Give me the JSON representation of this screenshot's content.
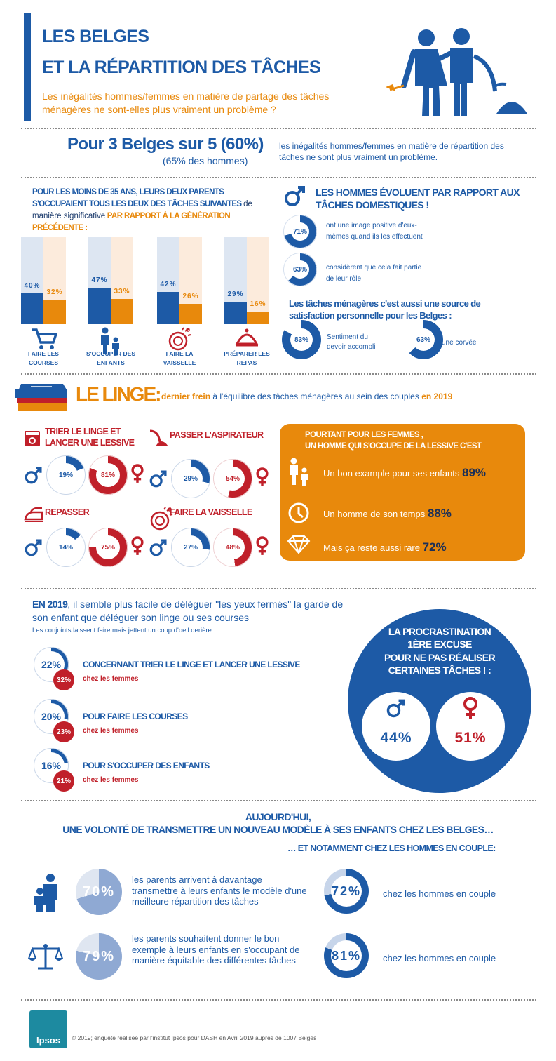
{
  "header": {
    "title_line1": "LES BELGES",
    "title_line2": "ET LA RÉPARTITION DES TÂCHES",
    "subtitle": "Les inégalités hommes/femmes en matière de partage des tâches ménagères ne sont-elles plus vraiment un problème ?"
  },
  "headline": {
    "big": "Pour 3 Belges sur 5 (60%)",
    "sub": "(65% des hommes)",
    "text": "les inégalités hommes/femmes en matière de répartition des tâches ne sont plus vraiment un problème."
  },
  "parents": {
    "title_a": "POUR LES MOINS DE 35 ANS, LEURS DEUX PARENTS S'OCCUPAIENT TOUS LES DEUX DES TÂCHES SUIVANTES",
    "title_b": "de manière significative",
    "title_c": "PAR RAPPORT À LA GÉNÉRATION PRÉCÉDENTE :",
    "bars": [
      {
        "label": "FAIRE LES COURSES",
        "blue": 40,
        "orange": 32,
        "blue_label": "40%",
        "orange_label": "32%",
        "icon": "cart-icon"
      },
      {
        "label": "S'OCCUPER DES ENFANTS",
        "blue": 47,
        "orange": 33,
        "blue_label": "47%",
        "orange_label": "33%",
        "icon": "parent-child-icon"
      },
      {
        "label": "FAIRE LA VAISSELLE",
        "blue": 42,
        "orange": 26,
        "blue_label": "42%",
        "orange_label": "26%",
        "icon": "dishes-icon"
      },
      {
        "label": "PRÉPARER LES REPAS",
        "blue": 29,
        "orange": 16,
        "blue_label": "29%",
        "orange_label": "16%",
        "icon": "cloche-icon"
      }
    ]
  },
  "men": {
    "title": "LES HOMMES ÉVOLUENT PAR RAPPORT AUX TÂCHES DOMESTIQUES !",
    "items": [
      {
        "pct": 71,
        "label": "71%",
        "text": "ont une image positive d'eux-mêmes quand ils les effectuent"
      },
      {
        "pct": 63,
        "label": "63%",
        "text": "considèrent que cela fait partie de leur rôle"
      }
    ],
    "satisfaction_title": "Les tâches ménagères c'est aussi une source de satisfaction personnelle pour les Belges :",
    "satisfaction": [
      {
        "pct": 83,
        "label": "83%",
        "text": "Sentiment du devoir accompli"
      },
      {
        "pct": 63,
        "label": "63%",
        "text": "une corvée"
      }
    ]
  },
  "linge": {
    "title": "LE LINGE:",
    "text_a": "dernier frein",
    "text_b": "à l'équilibre des tâches ménagères au sein des couples",
    "text_c": "en 2019",
    "tasks": [
      {
        "title": "TRIER LE LINGE ET LANCER UNE LESSIVE",
        "men": 19,
        "men_label": "19%",
        "women": 81,
        "women_label": "81%",
        "icon": "washing-machine-icon"
      },
      {
        "title": "PASSER L'ASPIRATEUR",
        "men": 29,
        "men_label": "29%",
        "women": 54,
        "women_label": "54%",
        "icon": "vacuum-icon"
      },
      {
        "title": "REPASSER",
        "men": 14,
        "men_label": "14%",
        "women": 75,
        "women_label": "75%",
        "icon": "iron-icon"
      },
      {
        "title": "FAIRE LA VAISSELLE",
        "men": 27,
        "men_label": "27%",
        "women": 48,
        "women_label": "48%",
        "icon": "dishes-icon"
      }
    ],
    "box": {
      "title_a": "POURTANT POUR LES FEMMES ,",
      "title_b": "UN HOMME QUI S'OCCUPE DE LA LESSIVE C'EST",
      "items": [
        {
          "text": "Un bon example pour ses enfants",
          "value": "89%",
          "icon": "parent-child-icon"
        },
        {
          "text": "Un homme de son temps",
          "value": "88%",
          "icon": "clock-icon"
        },
        {
          "text": "Mais ça reste aussi rare",
          "value": "72%",
          "icon": "diamond-icon"
        }
      ]
    }
  },
  "delegate": {
    "title_bold": "EN 2019",
    "title_rest": ", il semble plus facile de déléguer \"les yeux fermés\" la garde de son enfant que déléguer son linge ou ses courses",
    "sub": "Les conjoints laissent faire mais jettent un coup d'oeil derière",
    "women_suffix": "chez les femmes",
    "items": [
      {
        "men": 22,
        "men_label": "22%",
        "women_label": "32%",
        "text": "CONCERNANT TRIER LE LINGE ET LANCER UNE LESSIVE"
      },
      {
        "men": 20,
        "men_label": "20%",
        "women_label": "23%",
        "text": "POUR FAIRE LES COURSES"
      },
      {
        "men": 16,
        "men_label": "16%",
        "women_label": "21%",
        "text": "POUR S'OCCUPER DES ENFANTS"
      }
    ]
  },
  "procrastination": {
    "line1": "LA PROCRASTINATION",
    "line2": "1ÈRE EXCUSE",
    "line3": "POUR NE PAS RÉALISER CERTAINES TÂCHES ! :",
    "men": "44%",
    "women": "51%"
  },
  "today": {
    "title1": "AUJOURD'HUI,",
    "title2": "UNE VOLONTÉ DE TRANSMETTRE UN NOUVEAU MODÈLE À SES ENFANTS CHEZ LES BELGES…",
    "title3": "… ET NOTAMMENT CHEZ LES HOMMES EN COUPLE:",
    "items": [
      {
        "pct": 70,
        "label": "70%",
        "text": "les parents arrivent à davantage transmettre à leurs enfants le modèle d'une meilleure répartition des tâches",
        "couple_pct": 72,
        "couple_label": "72%",
        "couple_text": "chez les hommes en couple",
        "icon": "family-icon"
      },
      {
        "pct": 79,
        "label": "79%",
        "text": "les parents souhaitent donner le bon exemple à leurs enfants en s'occupant de manière équitable des différentes tâches",
        "couple_pct": 81,
        "couple_label": "81%",
        "couple_text": "chez les hommes en couple",
        "icon": "scales-icon"
      }
    ]
  },
  "footer": {
    "logo": "Ipsos",
    "note": "© 2019; enquête réalisée par l'institut Ipsos pour DASH en Avril 2019 auprès de 1007 Belges"
  },
  "colors": {
    "blue": "#1d5aa6",
    "orange": "#e8890c",
    "red": "#c0202a",
    "light_blue": "#dde6f2",
    "light_orange": "#fcebdc"
  }
}
